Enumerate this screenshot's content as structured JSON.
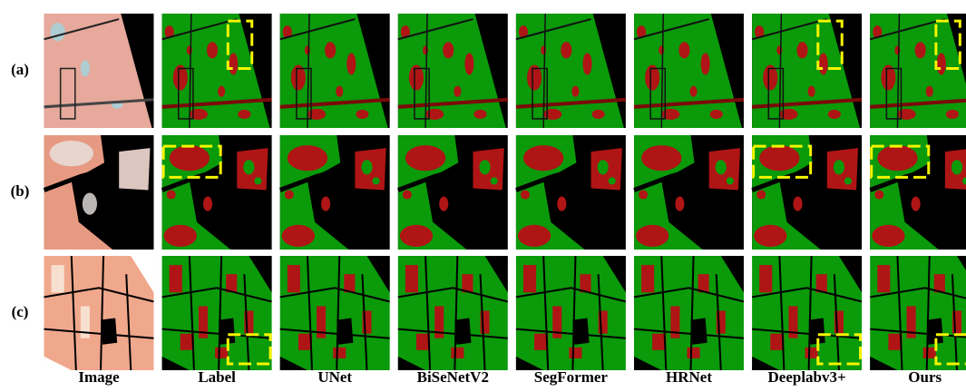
{
  "rows": [
    {
      "label": "(a)"
    },
    {
      "label": "(b)"
    },
    {
      "label": "(c)"
    }
  ],
  "columns": [
    "Image",
    "Label",
    "UNet",
    "BiSeNetV2",
    "SegFormer",
    "HRNet",
    "Deeplabv3+",
    "Ours"
  ]
}
